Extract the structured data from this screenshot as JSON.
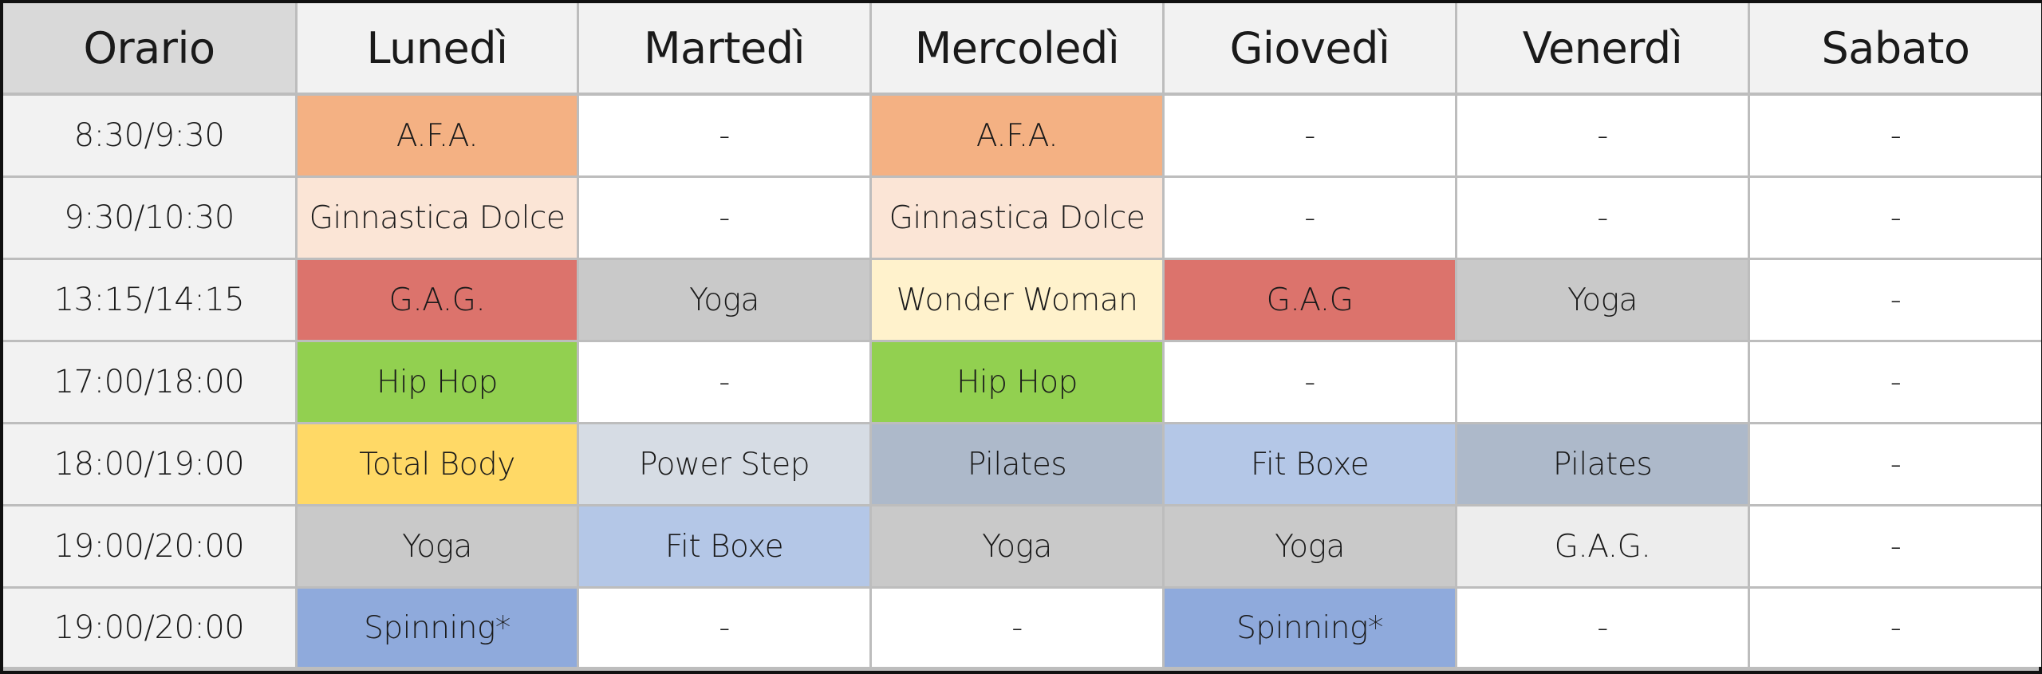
{
  "table": {
    "headers": [
      "Orario",
      "Lunedì",
      "Martedì",
      "Mercoledì",
      "Giovedì",
      "Venerdì",
      "Sabato"
    ],
    "rows": [
      {
        "time": "8:30/9:30",
        "cells": [
          {
            "text": "A.F.A.",
            "color": "#f4b183"
          },
          {
            "text": "-",
            "color": "#ffffff"
          },
          {
            "text": "A.F.A.",
            "color": "#f4b183"
          },
          {
            "text": "-",
            "color": "#ffffff"
          },
          {
            "text": "-",
            "color": "#ffffff"
          },
          {
            "text": "-",
            "color": "#ffffff"
          }
        ]
      },
      {
        "time": "9:30/10:30",
        "cells": [
          {
            "text": "Ginnastica Dolce",
            "color": "#fbe5d6"
          },
          {
            "text": "-",
            "color": "#ffffff"
          },
          {
            "text": "Ginnastica Dolce",
            "color": "#fbe5d6"
          },
          {
            "text": "-",
            "color": "#ffffff"
          },
          {
            "text": "-",
            "color": "#ffffff"
          },
          {
            "text": "-",
            "color": "#ffffff"
          }
        ]
      },
      {
        "time": "13:15/14:15",
        "cells": [
          {
            "text": "G.A.G.",
            "color": "#dc736c"
          },
          {
            "text": "Yoga",
            "color": "#c9c9c9"
          },
          {
            "text": "Wonder Woman",
            "color": "#fff2cc"
          },
          {
            "text": "G.A.G",
            "color": "#dc736c"
          },
          {
            "text": "Yoga",
            "color": "#c9c9c9"
          },
          {
            "text": "-",
            "color": "#ffffff"
          }
        ]
      },
      {
        "time": "17:00/18:00",
        "cells": [
          {
            "text": "Hip Hop",
            "color": "#92d050"
          },
          {
            "text": "-",
            "color": "#ffffff"
          },
          {
            "text": "Hip Hop",
            "color": "#92d050"
          },
          {
            "text": "-",
            "color": "#ffffff"
          },
          {
            "text": "",
            "color": "#ffffff"
          },
          {
            "text": "-",
            "color": "#ffffff"
          }
        ]
      },
      {
        "time": "18:00/19:00",
        "cells": [
          {
            "text": "Total Body",
            "color": "#ffd966"
          },
          {
            "text": "Power Step",
            "color": "#d6dce4"
          },
          {
            "text": "Pilates",
            "color": "#adb9ca"
          },
          {
            "text": "Fit Boxe",
            "color": "#b4c7e7"
          },
          {
            "text": "Pilates",
            "color": "#adb9ca"
          },
          {
            "text": "-",
            "color": "#ffffff"
          }
        ]
      },
      {
        "time": "19:00/20:00",
        "cells": [
          {
            "text": "Yoga",
            "color": "#c9c9c9"
          },
          {
            "text": "Fit Boxe",
            "color": "#b4c7e7"
          },
          {
            "text": "Yoga",
            "color": "#c9c9c9"
          },
          {
            "text": "Yoga",
            "color": "#c9c9c9"
          },
          {
            "text": "G.A.G.",
            "color": "#ededed"
          },
          {
            "text": "-",
            "color": "#ffffff"
          }
        ]
      },
      {
        "time": "19:00/20:00",
        "cells": [
          {
            "text": "Spinning*",
            "color": "#8faadc"
          },
          {
            "text": "-",
            "color": "#ffffff"
          },
          {
            "text": "-",
            "color": "#ffffff"
          },
          {
            "text": "Spinning*",
            "color": "#8faadc"
          },
          {
            "text": "-",
            "color": "#ffffff"
          },
          {
            "text": "-",
            "color": "#ffffff"
          }
        ]
      }
    ]
  }
}
